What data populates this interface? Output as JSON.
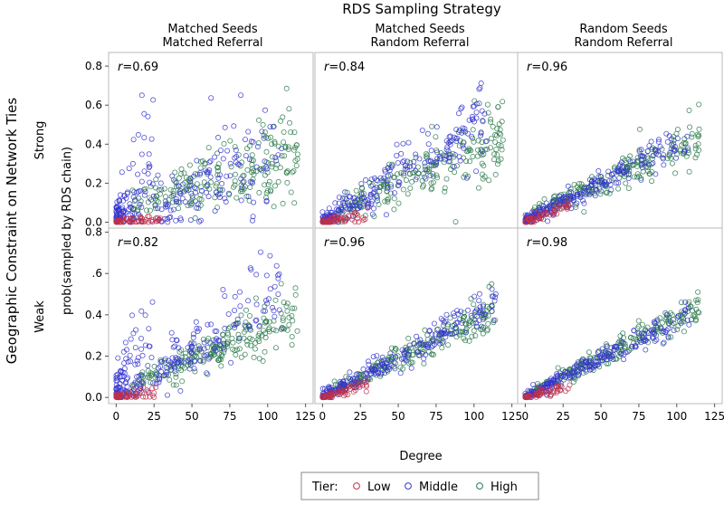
{
  "chart_data": {
    "type": "scatter",
    "title": "RDS Sampling Strategy",
    "row_title": "Geographic Constraint on Network Ties",
    "xlabel": "Degree",
    "ylabel": "prob(sampled by RDS chain)",
    "xlim": [
      -5,
      130
    ],
    "x_ticks": [
      "0",
      "25",
      "50",
      "75",
      "100",
      "125"
    ],
    "columns": [
      {
        "line1": "Matched Seeds",
        "line2": "Matched Referral"
      },
      {
        "line1": "Matched Seeds",
        "line2": "Random Referral"
      },
      {
        "line1": "Random Seeds",
        "line2": "Random Referral"
      }
    ],
    "rows": [
      {
        "label": "Strong",
        "ylim": [
          -0.03,
          0.87
        ],
        "y_ticks": [
          "0.0",
          "0.2",
          "0.4",
          "0.6",
          "0.8"
        ]
      },
      {
        "label": "Weak",
        "ylim": [
          -0.03,
          0.82
        ],
        "y_ticks": [
          "0.0",
          "0.2",
          "0.4",
          ".6",
          "0.8"
        ]
      }
    ],
    "legend": {
      "title": "Tier:",
      "position": "bottom",
      "entries": [
        {
          "name": "Low",
          "color": "#c0304a"
        },
        {
          "name": "Middle",
          "color": "#3535d0"
        },
        {
          "name": "High",
          "color": "#2a7a4a"
        }
      ]
    },
    "panels": [
      {
        "row": 0,
        "col": 0,
        "r_label": "r",
        "r_value": "=0.69",
        "series": {
          "Low": {
            "x_range": [
              0,
              30
            ],
            "center_trend": [
              0,
              0.0
            ],
            "spread": 0.02
          },
          "Middle": {
            "x_range": [
              0,
              110
            ],
            "center_trend": [
              0.0,
              0.0035
            ],
            "spread": 0.12
          },
          "High": {
            "x_range": [
              10,
              120
            ],
            "center_trend": [
              0.05,
              0.0027
            ],
            "spread": 0.09
          }
        }
      },
      {
        "row": 0,
        "col": 1,
        "r_label": "r",
        "r_value": "=0.84",
        "series": {
          "Low": {
            "x_range": [
              0,
              30
            ],
            "center_trend": [
              0,
              0.001
            ],
            "spread": 0.02
          },
          "Middle": {
            "x_range": [
              0,
              110
            ],
            "center_trend": [
              0.0,
              0.005
            ],
            "spread": 0.07
          },
          "High": {
            "x_range": [
              10,
              120
            ],
            "center_trend": [
              0.02,
              0.0036
            ],
            "spread": 0.08
          }
        }
      },
      {
        "row": 0,
        "col": 2,
        "r_label": "r",
        "r_value": "=0.96",
        "series": {
          "Low": {
            "x_range": [
              0,
              30
            ],
            "center_trend": [
              0,
              0.003
            ],
            "spread": 0.02
          },
          "Middle": {
            "x_range": [
              0,
              110
            ],
            "center_trend": [
              0.01,
              0.0038
            ],
            "spread": 0.04
          },
          "High": {
            "x_range": [
              5,
              115
            ],
            "center_trend": [
              0.02,
              0.0037
            ],
            "spread": 0.05
          }
        }
      },
      {
        "row": 1,
        "col": 0,
        "r_label": "r",
        "r_value": "=0.82",
        "series": {
          "Low": {
            "x_range": [
              0,
              30
            ],
            "center_trend": [
              0,
              0.001
            ],
            "spread": 0.02
          },
          "Middle": {
            "x_range": [
              0,
              110
            ],
            "center_trend": [
              0.0,
              0.0045
            ],
            "spread": 0.09
          },
          "High": {
            "x_range": [
              10,
              120
            ],
            "center_trend": [
              0.02,
              0.0032
            ],
            "spread": 0.05
          }
        }
      },
      {
        "row": 1,
        "col": 1,
        "r_label": "r",
        "r_value": "=0.96",
        "series": {
          "Low": {
            "x_range": [
              0,
              30
            ],
            "center_trend": [
              0,
              0.002
            ],
            "spread": 0.015
          },
          "Middle": {
            "x_range": [
              0,
              115
            ],
            "center_trend": [
              0.0,
              0.004
            ],
            "spread": 0.04
          },
          "High": {
            "x_range": [
              5,
              115
            ],
            "center_trend": [
              0.01,
              0.0036
            ],
            "spread": 0.04
          }
        }
      },
      {
        "row": 1,
        "col": 2,
        "r_label": "r",
        "r_value": "=0.98",
        "series": {
          "Low": {
            "x_range": [
              0,
              30
            ],
            "center_trend": [
              0,
              0.002
            ],
            "spread": 0.015
          },
          "Middle": {
            "x_range": [
              0,
              110
            ],
            "center_trend": [
              0.0,
              0.0037
            ],
            "spread": 0.03
          },
          "High": {
            "x_range": [
              5,
              115
            ],
            "center_trend": [
              0.01,
              0.0037
            ],
            "spread": 0.03
          }
        }
      }
    ]
  }
}
